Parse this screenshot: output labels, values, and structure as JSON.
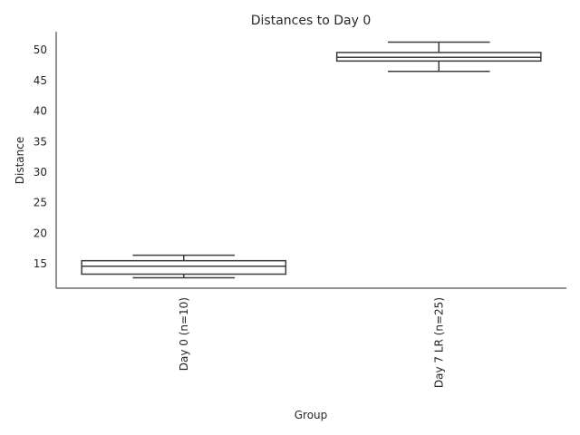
{
  "chart_data": {
    "type": "box",
    "title": "Distances to Day 0",
    "xlabel": "Group",
    "ylabel": "Distance",
    "ylim": [
      11,
      53
    ],
    "yticks": [
      15,
      20,
      25,
      30,
      35,
      40,
      45,
      50
    ],
    "categories": [
      "Day 0 (n=10)",
      "Day 7 LR (n=25)"
    ],
    "boxes": [
      {
        "whisker_low": 12.7,
        "q1": 13.3,
        "median": 14.6,
        "q3": 15.5,
        "whisker_high": 16.4
      },
      {
        "whisker_low": 46.5,
        "q1": 48.2,
        "median": 48.8,
        "q3": 49.6,
        "whisker_high": 51.3
      }
    ],
    "grid": false,
    "colors": {
      "stroke": "#3c3c3c",
      "fill": "#ffffff"
    }
  }
}
